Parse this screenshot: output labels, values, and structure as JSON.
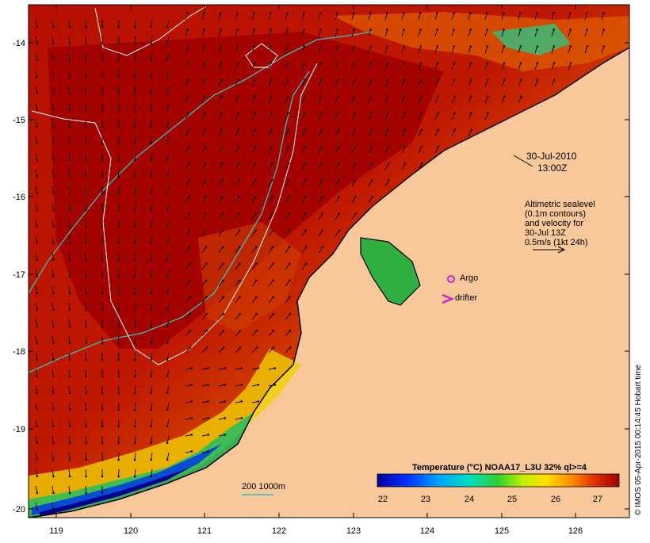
{
  "map": {
    "lat_ticks": [
      "-14",
      "-15",
      "-16",
      "-17",
      "-18",
      "-19",
      "-20"
    ],
    "lon_ticks": [
      "119",
      "120",
      "121",
      "122",
      "123",
      "124",
      "125",
      "126"
    ],
    "date": "30-Jul-2010",
    "time": "13:00Z",
    "legend_block": {
      "line1": "Altimetric sealevel",
      "line2": "(0.1m contours)",
      "line3": "and velocity for",
      "line4": "30-Jul 13Z",
      "line5": "0.5m/s (1kt 24h)"
    },
    "argo_label": "Argo",
    "drifter_label": "drifter",
    "depth_label": "200  1000m",
    "credit": "© IMOS 05-Apr-2015 00:14:45 Hobart time",
    "colorbar": {
      "title": "Temperature (°C) NOAA17_L3U 32% ql>=4",
      "ticks": [
        "22",
        "23",
        "24",
        "25",
        "26",
        "27"
      ]
    },
    "colors": {
      "land": "#f8c79a",
      "coast": "#000000",
      "isobath": "#33c0c0",
      "contour": "#ffffff",
      "argo": "#d020d0",
      "drifter": "#d020d0"
    }
  }
}
